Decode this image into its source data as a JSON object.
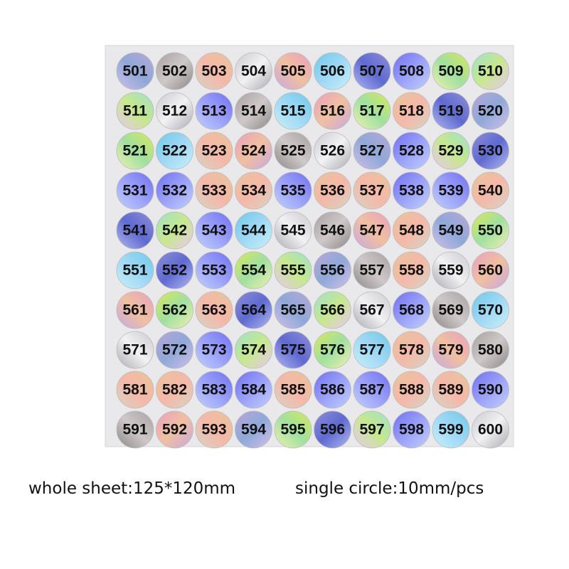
{
  "sheet": {
    "rows": [
      [
        501,
        502,
        503,
        504,
        505,
        506,
        507,
        508,
        509,
        510
      ],
      [
        511,
        512,
        513,
        514,
        515,
        516,
        517,
        518,
        519,
        520
      ],
      [
        521,
        522,
        523,
        524,
        525,
        526,
        527,
        528,
        529,
        530
      ],
      [
        531,
        532,
        533,
        534,
        535,
        536,
        537,
        538,
        539,
        540
      ],
      [
        541,
        542,
        543,
        544,
        545,
        546,
        547,
        548,
        549,
        550
      ],
      [
        551,
        552,
        553,
        554,
        555,
        556,
        557,
        558,
        559,
        560
      ],
      [
        561,
        562,
        563,
        564,
        565,
        566,
        567,
        568,
        569,
        570
      ],
      [
        571,
        572,
        573,
        574,
        575,
        576,
        577,
        578,
        579,
        580
      ],
      [
        581,
        582,
        583,
        584,
        585,
        586,
        587,
        588,
        589,
        590
      ],
      [
        591,
        592,
        593,
        594,
        595,
        596,
        597,
        598,
        599,
        600
      ]
    ]
  },
  "captions": {
    "whole_sheet": "whole sheet:125*120mm",
    "single_circle": "single circle:10mm/pcs"
  }
}
